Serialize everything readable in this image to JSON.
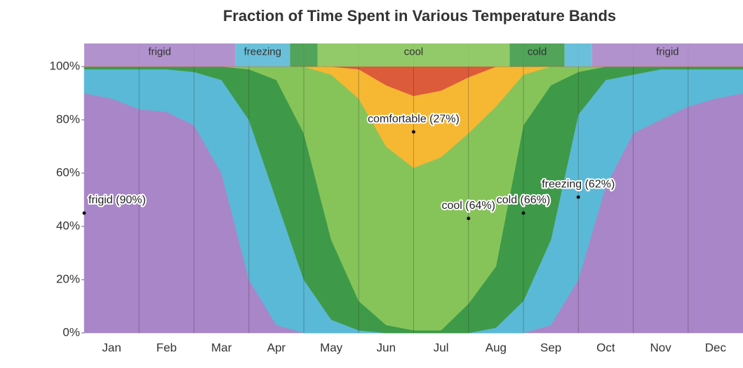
{
  "chart_data": {
    "type": "stacked_area",
    "title": "Fraction of Time Spent in Various Temperature Bands",
    "categories": [
      null,
      "Jan",
      null,
      "Feb",
      null,
      "Mar",
      null,
      "Apr",
      null,
      "May",
      null,
      "Jun",
      null,
      "Jul",
      null,
      "Aug",
      null,
      "Sep",
      null,
      "Oct",
      null,
      "Nov",
      null,
      "Dec",
      null
    ],
    "series": [
      {
        "name": "frigid",
        "color": "#a886c8",
        "values": [
          90,
          88,
          84,
          83,
          78,
          60,
          20,
          3,
          0,
          0,
          0,
          0,
          0,
          0,
          0,
          0,
          0,
          3,
          20,
          55,
          75,
          80,
          85,
          88,
          90
        ],
        "value_labels": [
          "frigid (90%)",
          null,
          null,
          null,
          null,
          null,
          null,
          null,
          null,
          null,
          null,
          null,
          null,
          null,
          null,
          null,
          null,
          null,
          null,
          null,
          null,
          null,
          null,
          null,
          null
        ]
      },
      {
        "name": "freezing",
        "color": "#5ab9d6",
        "values": [
          9,
          11,
          15,
          16,
          20,
          35,
          60,
          47,
          20,
          5,
          1,
          0,
          0,
          0,
          0,
          2,
          12,
          32,
          62,
          40,
          22,
          19,
          14,
          11,
          9
        ],
        "value_labels": [
          null,
          null,
          null,
          null,
          null,
          null,
          null,
          null,
          null,
          null,
          null,
          null,
          null,
          null,
          null,
          null,
          null,
          null,
          "freezing (62%)",
          null,
          null,
          null,
          null,
          null,
          null
        ]
      },
      {
        "name": "cold",
        "color": "#3e9a48",
        "values": [
          1,
          1,
          1,
          1,
          2,
          5,
          19,
          45,
          55,
          30,
          11,
          3,
          1,
          1,
          11,
          23,
          66,
          58,
          16,
          5,
          3,
          1,
          1,
          1,
          1
        ],
        "value_labels": [
          null,
          null,
          null,
          null,
          null,
          null,
          null,
          null,
          null,
          null,
          null,
          null,
          null,
          null,
          null,
          null,
          "cold (66%)",
          null,
          null,
          null,
          null,
          null,
          null,
          null,
          null
        ]
      },
      {
        "name": "cool",
        "color": "#86c45a",
        "values": [
          0,
          0,
          0,
          0,
          0,
          0,
          1,
          5,
          25,
          62,
          76,
          67,
          61,
          65,
          64,
          60,
          19,
          7,
          2,
          0,
          0,
          0,
          0,
          0,
          0
        ],
        "value_labels": [
          null,
          null,
          null,
          null,
          null,
          null,
          null,
          null,
          null,
          null,
          null,
          null,
          null,
          null,
          "cool (64%)",
          null,
          null,
          null,
          null,
          null,
          null,
          null,
          null,
          null,
          null
        ]
      },
      {
        "name": "comfortable",
        "color": "#f6b733",
        "values": [
          0,
          0,
          0,
          0,
          0,
          0,
          0,
          0,
          0,
          3,
          11,
          23,
          27,
          25,
          21,
          15,
          3,
          0,
          0,
          0,
          0,
          0,
          0,
          0,
          0
        ],
        "value_labels": [
          null,
          null,
          null,
          null,
          null,
          null,
          null,
          null,
          null,
          null,
          null,
          null,
          "comfortable (27%)",
          null,
          null,
          null,
          null,
          null,
          null,
          null,
          null,
          null,
          null,
          null,
          null
        ]
      },
      {
        "color": "#dc5b3a",
        "values": [
          0,
          0,
          0,
          0,
          0,
          0,
          0,
          0,
          0,
          0,
          1,
          7,
          11,
          9,
          4,
          0,
          0,
          0,
          0,
          0,
          0,
          0,
          0,
          0,
          0
        ]
      }
    ],
    "ylim": [
      0,
      100
    ],
    "yticks": [
      {
        "value": 0,
        "label": "0%"
      },
      {
        "value": 20,
        "label": "20%"
      },
      {
        "value": 40,
        "label": "40%"
      },
      {
        "value": 60,
        "label": "60%"
      },
      {
        "value": 80,
        "label": "80%"
      },
      {
        "value": 100,
        "label": "100%"
      }
    ]
  }
}
